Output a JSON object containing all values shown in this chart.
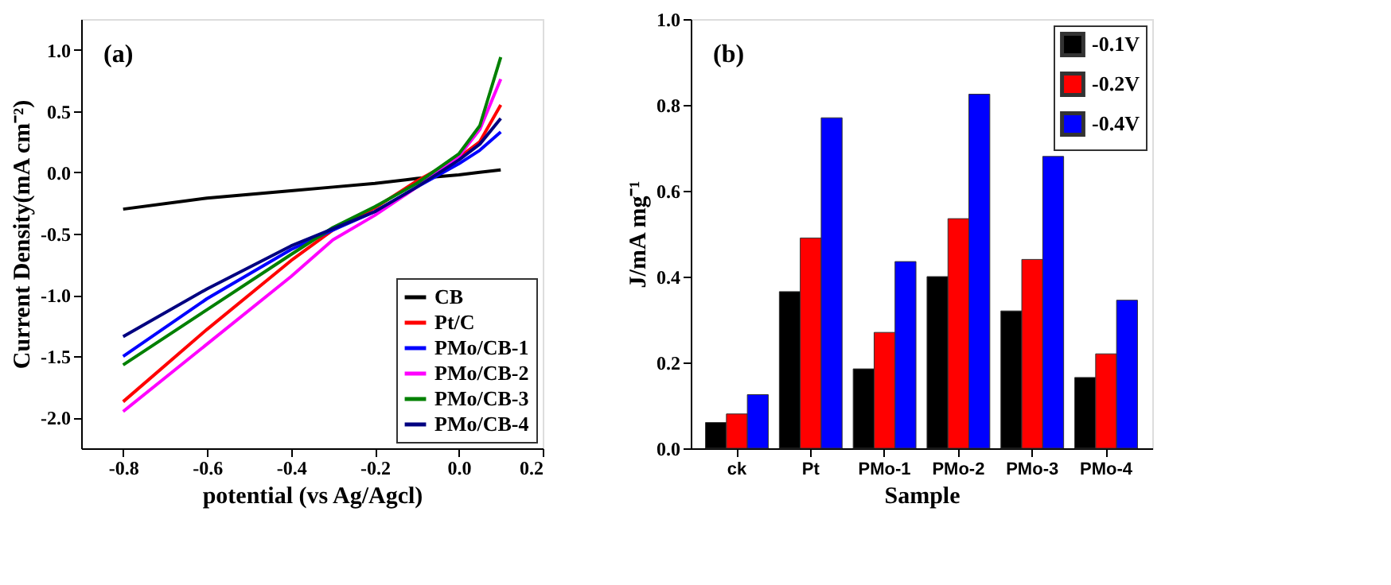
{
  "chart_data": [
    {
      "type": "line",
      "xlabel": "potential (vs Ag/Agcl)",
      "ylabel": "Current Density(mA cm⁻²)",
      "annotations": [
        "(a)"
      ],
      "x": [
        -0.8,
        -0.6,
        -0.4,
        -0.3,
        -0.2,
        -0.1,
        0,
        0.05,
        0.1
      ],
      "series": [
        {
          "name": "CB",
          "color": "#000000",
          "values": [
            -0.3,
            -0.21,
            -0.15,
            -0.12,
            -0.09,
            -0.05,
            -0.02,
            0.0,
            0.02
          ]
        },
        {
          "name": "Pt/C",
          "color": "#ff0000",
          "values": [
            -1.87,
            -1.28,
            -0.72,
            -0.47,
            -0.29,
            -0.07,
            0.12,
            0.25,
            0.55
          ]
        },
        {
          "name": "PMo/CB-1",
          "color": "#0000ff",
          "values": [
            -1.5,
            -1.03,
            -0.63,
            -0.47,
            -0.32,
            -0.12,
            0.07,
            0.18,
            0.33
          ]
        },
        {
          "name": "PMo/CB-2",
          "color": "#ff00ff",
          "values": [
            -1.95,
            -1.4,
            -0.85,
            -0.55,
            -0.35,
            -0.12,
            0.13,
            0.35,
            0.76
          ]
        },
        {
          "name": "PMo/CB-3",
          "color": "#008000",
          "values": [
            -1.57,
            -1.12,
            -0.67,
            -0.45,
            -0.28,
            -0.09,
            0.15,
            0.38,
            0.94
          ]
        },
        {
          "name": "PMo/CB-4",
          "color": "#000080",
          "values": [
            -1.34,
            -0.95,
            -0.6,
            -0.46,
            -0.32,
            -0.12,
            0.1,
            0.23,
            0.44
          ]
        }
      ],
      "xlim": [
        -0.9,
        0.2
      ],
      "xticks": [
        {
          "value": -0.8,
          "label": "-0.8"
        },
        {
          "value": -0.6,
          "label": "-0.6"
        },
        {
          "value": -0.4,
          "label": "-0.4"
        },
        {
          "value": -0.2,
          "label": "-0.2"
        },
        {
          "value": 0,
          "label": "0.0"
        },
        {
          "value": 0.2,
          "label": "0.2"
        }
      ],
      "ylim": [
        -2.25,
        1.25
      ],
      "yticks": [
        {
          "value": -2,
          "label": "-2.0"
        },
        {
          "value": -1.5,
          "label": "-1.5"
        },
        {
          "value": -1,
          "label": "-1.0"
        },
        {
          "value": -0.5,
          "label": "-0.5"
        },
        {
          "value": 0,
          "label": "0.0"
        },
        {
          "value": 0.5,
          "label": "0.5"
        },
        {
          "value": 1,
          "label": "1.0"
        }
      ],
      "grid": false,
      "legend": "bottom right",
      "line_style": "solid"
    },
    {
      "type": "bar",
      "xlabel": "Sample",
      "ylabel": "J/mA mg⁻¹",
      "annotations": [
        "(b)"
      ],
      "categories": [
        "ck",
        "Pt",
        "PMo-1",
        "PMo-2",
        "PMo-3",
        "PMo-4"
      ],
      "series": [
        {
          "name": "-0.1V",
          "color": "#000000",
          "values": [
            0.06,
            0.365,
            0.185,
            0.4,
            0.32,
            0.165
          ]
        },
        {
          "name": "-0.2V",
          "color": "#ff0000",
          "values": [
            0.08,
            0.49,
            0.27,
            0.535,
            0.44,
            0.22
          ]
        },
        {
          "name": "-0.4V",
          "color": "#0000ff",
          "values": [
            0.125,
            0.77,
            0.435,
            0.825,
            0.68,
            0.345
          ]
        }
      ],
      "ylim": [
        0,
        1
      ],
      "yticks": [
        {
          "value": 0,
          "label": "0.0"
        },
        {
          "value": 0.2,
          "label": "0.2"
        },
        {
          "value": 0.4,
          "label": "0.4"
        },
        {
          "value": 0.6,
          "label": "0.6"
        },
        {
          "value": 0.8,
          "label": "0.8"
        },
        {
          "value": 1,
          "label": "1.0"
        }
      ],
      "grid": false,
      "legend": "top right"
    }
  ]
}
